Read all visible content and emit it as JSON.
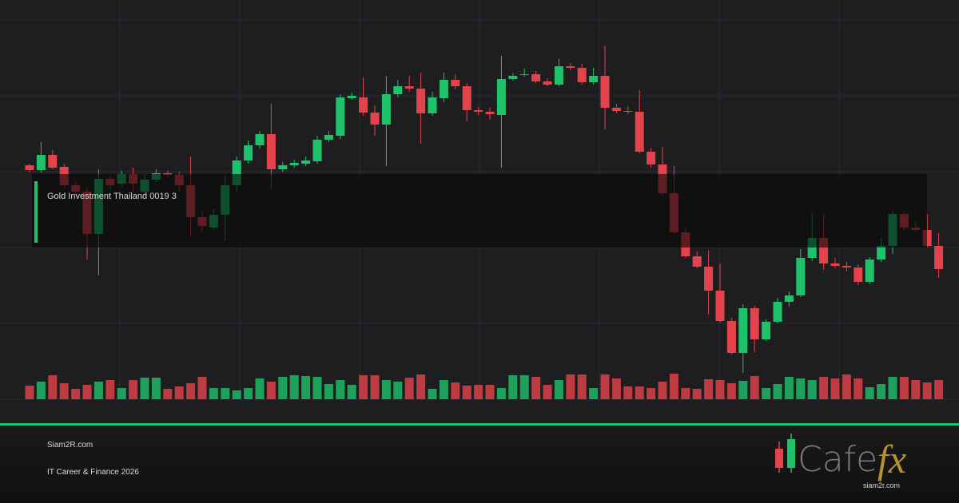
{
  "chart_data": {
    "type": "candlestick",
    "tooltip": "Gold Investment Thailand 0019 3",
    "up_color": "#1ec26a",
    "down_color": "#e4434b",
    "ylim": [
      0,
      520
    ],
    "vlim": [
      0,
      40
    ],
    "open": [
      313,
      307,
      326,
      311,
      288,
      280,
      227,
      296,
      290,
      302,
      280,
      295,
      303,
      301,
      288,
      248,
      235,
      251,
      288,
      319,
      338,
      352,
      308,
      313,
      315,
      318,
      345,
      350,
      397,
      398,
      379,
      364,
      402,
      412,
      409,
      378,
      397,
      420,
      412,
      382,
      380,
      376,
      421,
      426,
      427,
      418,
      414,
      437,
      435,
      417,
      425,
      385,
      381,
      380,
      330,
      314,
      278,
      229,
      199,
      186,
      156,
      118,
      78,
      134,
      95,
      117,
      142,
      150,
      197,
      222,
      190,
      187,
      185,
      167,
      195,
      212,
      252,
      235,
      232,
      212
    ],
    "close": [
      307,
      326,
      310,
      288,
      280,
      227,
      296,
      288,
      302,
      290,
      295,
      303,
      301,
      288,
      248,
      237,
      251,
      288,
      319,
      338,
      352,
      308,
      313,
      316,
      319,
      345,
      351,
      398,
      400,
      379,
      364,
      402,
      412,
      409,
      378,
      398,
      420,
      412,
      382,
      380,
      377,
      421,
      425,
      427,
      418,
      414,
      437,
      435,
      417,
      425,
      385,
      381,
      380,
      330,
      314,
      278,
      229,
      199,
      186,
      156,
      118,
      78,
      134,
      95,
      117,
      142,
      150,
      197,
      222,
      190,
      187,
      185,
      167,
      195,
      212,
      252,
      235,
      232,
      212,
      183
    ],
    "high": [
      315,
      342,
      332,
      315,
      292,
      285,
      308,
      300,
      306,
      310,
      302,
      308,
      306,
      305,
      324,
      255,
      258,
      300,
      324,
      344,
      356,
      390,
      317,
      320,
      324,
      350,
      356,
      402,
      404,
      423,
      388,
      425,
      420,
      425,
      429,
      405,
      429,
      427,
      416,
      386,
      385,
      450,
      428,
      434,
      431,
      422,
      446,
      441,
      440,
      435,
      463,
      390,
      387,
      407,
      335,
      336,
      312,
      235,
      205,
      206,
      190,
      122,
      139,
      137,
      120,
      147,
      155,
      208,
      253,
      252,
      197,
      192,
      189,
      198,
      222,
      255,
      255,
      243,
      252,
      228
    ],
    "low": [
      304,
      304,
      308,
      285,
      275,
      195,
      175,
      282,
      286,
      280,
      275,
      292,
      298,
      280,
      225,
      230,
      232,
      218,
      280,
      315,
      334,
      283,
      305,
      310,
      312,
      315,
      342,
      346,
      395,
      375,
      350,
      312,
      398,
      405,
      340,
      375,
      392,
      408,
      368,
      376,
      370,
      310,
      419,
      424,
      416,
      412,
      412,
      432,
      414,
      414,
      358,
      378,
      377,
      328,
      310,
      275,
      227,
      197,
      184,
      126,
      116,
      76,
      53,
      79,
      93,
      115,
      136,
      148,
      193,
      182,
      184,
      180,
      163,
      164,
      192,
      202,
      232,
      230,
      210,
      172
    ],
    "volume": [
      17,
      22,
      30,
      20,
      13,
      18,
      22,
      24,
      14,
      24,
      27,
      27,
      13,
      16,
      20,
      28,
      14,
      14,
      11,
      14,
      26,
      22,
      28,
      30,
      29,
      28,
      19,
      24,
      18,
      30,
      30,
      24,
      22,
      27,
      31,
      13,
      24,
      21,
      17,
      18,
      18,
      14,
      30,
      30,
      28,
      18,
      24,
      31,
      31,
      14,
      31,
      26,
      16,
      16,
      14,
      22,
      32,
      14,
      13,
      25,
      24,
      20,
      23,
      29,
      14,
      19,
      28,
      26,
      24,
      28,
      26,
      31,
      26,
      15,
      19,
      28,
      28,
      24,
      21,
      24
    ]
  },
  "footer": {
    "site": "Siam2R.com",
    "caption": "IT Career & Finance 2026",
    "logo_main": "Cafe",
    "logo_accent": "fx",
    "logo_url": "siam2r.com"
  }
}
